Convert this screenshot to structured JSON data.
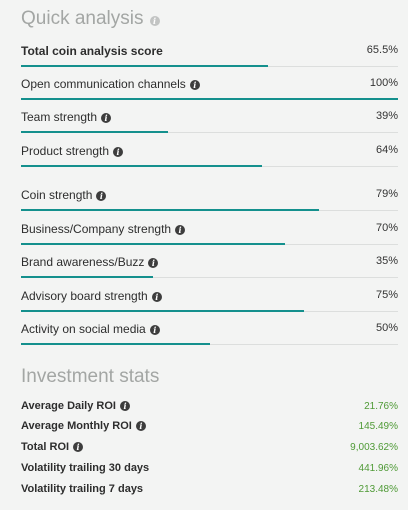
{
  "quick_analysis": {
    "title": "Quick analysis",
    "metrics": [
      {
        "label": "Total coin analysis score",
        "value": "65.5%",
        "fraction": 0.655
      },
      {
        "label": "Open communication channels",
        "value": "100%",
        "fraction": 1.0
      },
      {
        "label": "Team strength",
        "value": "39%",
        "fraction": 0.39
      },
      {
        "label": "Product strength",
        "value": "64%",
        "fraction": 0.64
      },
      {
        "label": "Coin strength",
        "value": "79%",
        "fraction": 0.79
      },
      {
        "label": "Business/Company strength",
        "value": "70%",
        "fraction": 0.7
      },
      {
        "label": "Brand awareness/Buzz",
        "value": "35%",
        "fraction": 0.35
      },
      {
        "label": "Advisory board strength",
        "value": "75%",
        "fraction": 0.75
      },
      {
        "label": "Activity on social media",
        "value": "50%",
        "fraction": 0.5
      }
    ]
  },
  "investment_stats": {
    "title": "Investment stats",
    "rows": [
      {
        "label": "Average Daily ROI",
        "value": "21.76%"
      },
      {
        "label": "Average Monthly ROI",
        "value": "145.49%"
      },
      {
        "label": "Total ROI",
        "value": "9,003.62%"
      },
      {
        "label": "Volatility trailing 30 days",
        "value": "441.96%"
      },
      {
        "label": "Volatility trailing 7 days",
        "value": "213.48%"
      }
    ]
  },
  "colors": {
    "bar_fill": "#14908d",
    "roi_value": "#4f9a36",
    "title_grey": "#a3a6a4"
  },
  "icons": {
    "info": "info-circle-icon"
  }
}
